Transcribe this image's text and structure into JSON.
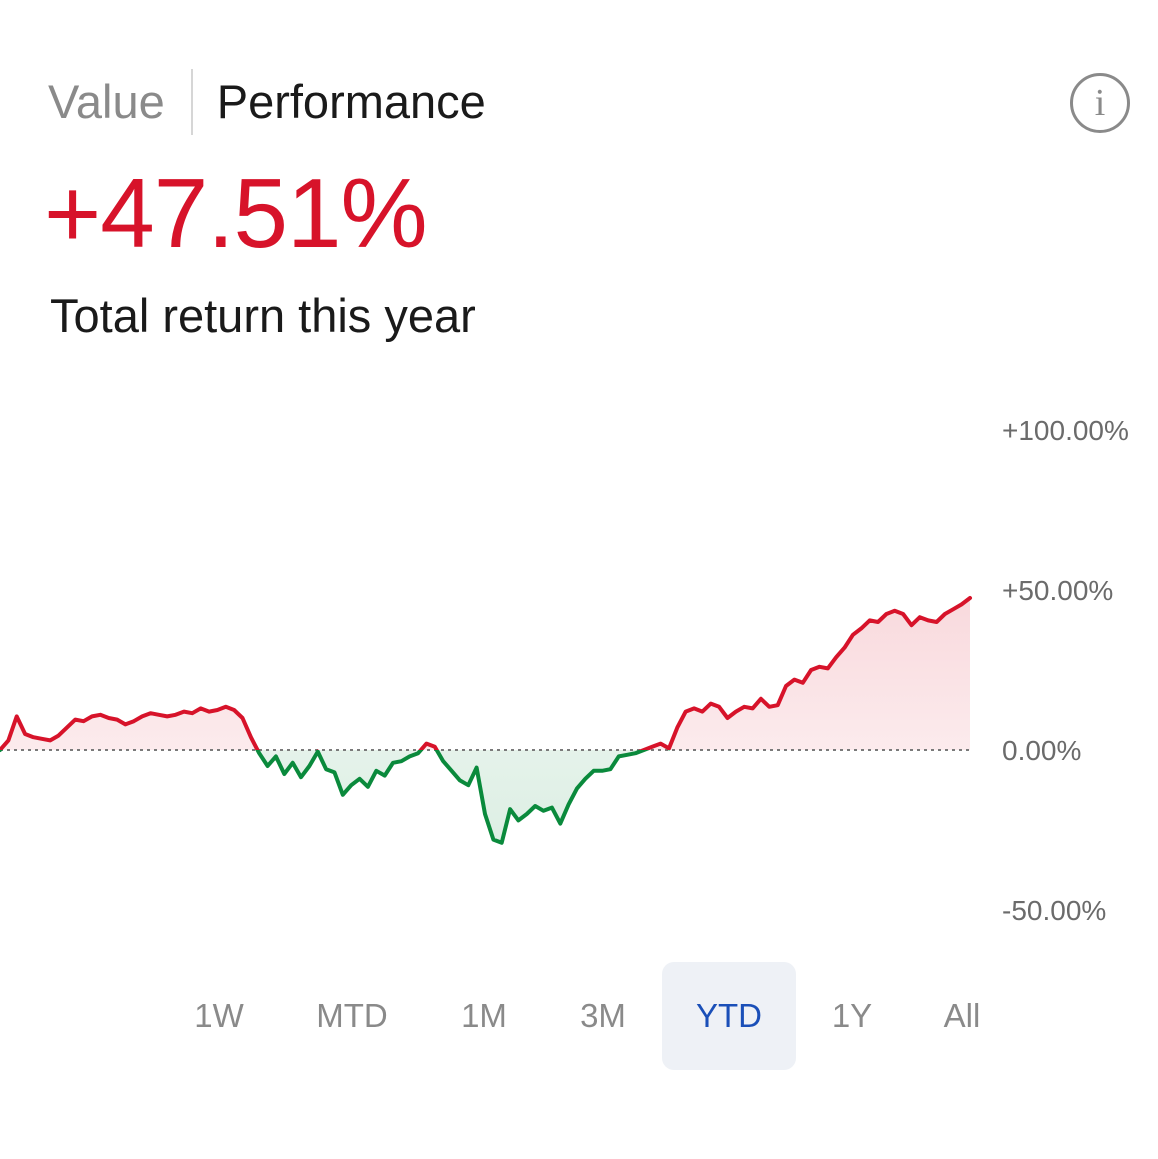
{
  "tabs": {
    "value_label": "Value",
    "performance_label": "Performance",
    "active": "performance"
  },
  "info_icon": "info-icon",
  "info_glyph": "i",
  "performance": {
    "value": "+47.51%",
    "caption": "Total return this year"
  },
  "colors": {
    "positive": "#d7132a",
    "negative": "#0a8a3c",
    "positive_fill": "#f9e3e6",
    "negative_fill": "#e6f4ea",
    "selected_range_bg": "#eef1f6",
    "selected_range_text": "#1a4fb8"
  },
  "ranges": {
    "items": [
      "1W",
      "MTD",
      "1M",
      "3M",
      "YTD",
      "1Y",
      "All"
    ],
    "selected": "YTD"
  },
  "chart_data": {
    "type": "line",
    "title": "",
    "xlabel": "",
    "ylabel": "",
    "ylim": [
      -50,
      100
    ],
    "yticks": [
      100,
      50,
      0,
      -50
    ],
    "ytick_labels": [
      "+100.00%",
      "+50.00%",
      "0.00%",
      "-50.00%"
    ],
    "baseline": 0,
    "baseline_style": "dotted",
    "color_rule": "red above 0, green below 0",
    "series": [
      {
        "values": [
          0.0,
          3.0,
          10.5,
          5.0,
          4.0,
          3.5,
          3.0,
          4.5,
          7.0,
          9.5,
          9.0,
          10.5,
          11.0,
          10.0,
          9.5,
          8.0,
          9.0,
          10.5,
          11.5,
          11.0,
          10.5,
          11.0,
          12.0,
          11.5,
          13.0,
          12.0,
          12.5,
          13.5,
          12.5,
          10.0,
          4.0,
          -1.0,
          -5.0,
          -2.0,
          -7.5,
          -4.0,
          -8.5,
          -5.0,
          -0.5,
          -6.0,
          -7.0,
          -14.0,
          -11.0,
          -9.0,
          -11.5,
          -6.5,
          -8.0,
          -4.0,
          -3.5,
          -2.0,
          -1.0,
          2.0,
          1.0,
          -3.5,
          -6.5,
          -9.5,
          -11.0,
          -5.5,
          -20.0,
          -28.0,
          -29.0,
          -18.5,
          -22.0,
          -20.0,
          -17.5,
          -19.0,
          -18.0,
          -23.0,
          -17.0,
          -12.0,
          -9.0,
          -6.5,
          -6.5,
          -6.0,
          -2.0,
          -1.5,
          -1.0,
          0.0,
          1.0,
          2.0,
          0.5,
          7.0,
          12.0,
          13.0,
          12.0,
          14.5,
          13.5,
          10.0,
          12.0,
          13.5,
          13.0,
          16.0,
          13.5,
          14.0,
          20.0,
          22.0,
          21.0,
          25.0,
          26.0,
          25.5,
          29.0,
          32.0,
          36.0,
          38.0,
          40.5,
          40.0,
          42.5,
          43.5,
          42.5,
          39.0,
          41.5,
          40.5,
          40.0,
          42.5,
          44.0,
          45.5,
          47.51
        ]
      }
    ]
  }
}
